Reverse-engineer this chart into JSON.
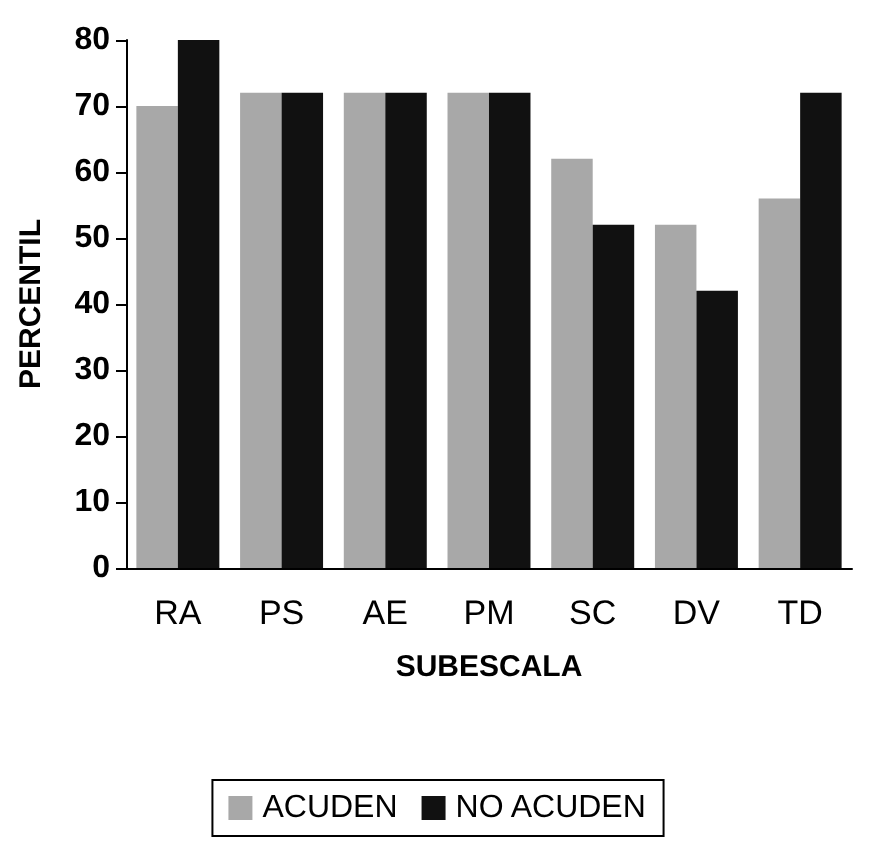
{
  "chart_data": {
    "type": "bar",
    "xlabel": "SUBESCALA",
    "ylabel": "PERCENTIL",
    "categories": [
      "RA",
      "PS",
      "AE",
      "PM",
      "SC",
      "DV",
      "TD"
    ],
    "series": [
      {
        "name": "ACUDEN",
        "color": "#a8a8a8",
        "values": [
          70,
          72,
          72,
          72,
          62,
          52,
          56
        ]
      },
      {
        "name": "NO ACUDEN",
        "color": "#111111",
        "values": [
          80,
          72,
          72,
          72,
          52,
          42,
          72
        ]
      }
    ],
    "ylim": [
      0,
      80
    ],
    "yticks": [
      0,
      10,
      20,
      30,
      40,
      50,
      60,
      70,
      80
    ],
    "legend": "bottom"
  }
}
